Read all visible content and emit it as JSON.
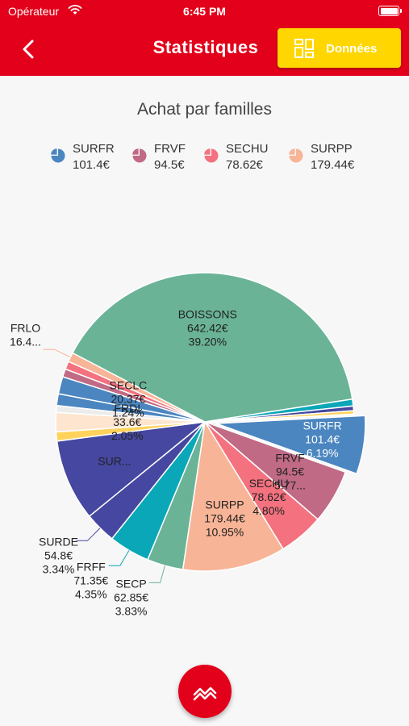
{
  "status_bar": {
    "carrier": "Opérateur",
    "time": "6:45 PM"
  },
  "header": {
    "title": "Statistiques",
    "data_button_label": "Données",
    "back_icon": "chevron-left-icon",
    "data_icon": "dashboard-grid-icon"
  },
  "fab": {
    "icon": "trend-chart-icon"
  },
  "colors": {
    "primary": "#e2001a",
    "accent": "#ffd600"
  },
  "chart_data": {
    "type": "pie",
    "title": "Achat par familles",
    "legend": [
      {
        "name": "SURFR",
        "value": "101.4€",
        "color": "#4b86c0"
      },
      {
        "name": "FRVF",
        "value": "94.5€",
        "color": "#c06a86"
      },
      {
        "name": "SECHU",
        "value": "78.62€",
        "color": "#f4727f"
      },
      {
        "name": "SURPP",
        "value": "179.44€",
        "color": "#f8b497"
      }
    ],
    "slices": [
      {
        "name": "SURFR",
        "value": 101.4,
        "value_label": "101.4€",
        "percent_label": "6.19%",
        "color": "#4b86c0"
      },
      {
        "name": "FRVF",
        "value": 94.5,
        "value_label": "94.5€",
        "percent_label": "5.77...",
        "color": "#c06a86"
      },
      {
        "name": "SECHU",
        "value": 78.62,
        "value_label": "78.62€",
        "percent_label": "4.80%",
        "color": "#f4727f"
      },
      {
        "name": "SURPP",
        "value": 179.44,
        "value_label": "179.44€",
        "percent_label": "10.95%",
        "color": "#f8b497"
      },
      {
        "name": "SECP",
        "value": 62.85,
        "value_label": "62.85€",
        "percent_label": "3.83%",
        "color": "#6ab397"
      },
      {
        "name": "FRFF",
        "value": 71.35,
        "value_label": "71.35€",
        "percent_label": "4.35%",
        "color": "#0aa7b8"
      },
      {
        "name": "SURDE",
        "value": 54.8,
        "value_label": "54.8€",
        "percent_label": "3.34%",
        "color": "#4547a0"
      },
      {
        "name": "SUR...",
        "value": 142.2,
        "color": "#4547a0"
      },
      {
        "name": "",
        "value": 16.0,
        "color": "#ffd25c"
      },
      {
        "name": "FRDI",
        "value": 33.6,
        "value_label": "33.6€",
        "percent_label": "2.05%",
        "color": "#fde5cf"
      },
      {
        "name": "",
        "value": 12.0,
        "color": "#ececec"
      },
      {
        "name": "SECLC",
        "value": 20.37,
        "value_label": "20.37€",
        "percent_label": "1.24%",
        "color": "#4b86c0"
      },
      {
        "name": "",
        "value": 30.0,
        "color": "#4b86c0"
      },
      {
        "name": "",
        "value": 14.0,
        "color": "#c06a86"
      },
      {
        "name": "",
        "value": 14.0,
        "color": "#f4727f"
      },
      {
        "name": "FRLO",
        "value": 16.4,
        "value_label": "16.4...",
        "color": "#f8b497"
      },
      {
        "name": "BOISSONS",
        "value": 642.42,
        "value_label": "642.42€",
        "percent_label": "39.20%",
        "color": "#6ab397"
      },
      {
        "name": "",
        "value": 12.0,
        "color": "#0aa7b8"
      },
      {
        "name": "",
        "value": 8.0,
        "color": "#4547a0"
      },
      {
        "name": "",
        "value": 6.0,
        "color": "#ffd25c"
      }
    ]
  }
}
